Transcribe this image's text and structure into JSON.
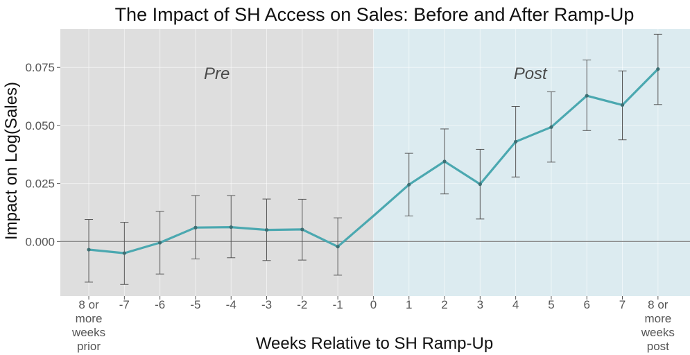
{
  "chart_data": {
    "type": "line",
    "title": "The Impact of SH Access on Sales: Before and After Ramp-Up",
    "xlabel": "Weeks Relative to SH Ramp-Up",
    "ylabel": "Impact on Log(Sales)",
    "x_tick_labels": [
      [
        "8 or",
        "more",
        "weeks",
        "prior"
      ],
      [
        "-7"
      ],
      [
        "-6"
      ],
      [
        "-5"
      ],
      [
        "-4"
      ],
      [
        "-3"
      ],
      [
        "-2"
      ],
      [
        "-1"
      ],
      [
        "0"
      ],
      [
        "1"
      ],
      [
        "2"
      ],
      [
        "3"
      ],
      [
        "4"
      ],
      [
        "5"
      ],
      [
        "6"
      ],
      [
        "7"
      ],
      [
        "8 or",
        "more",
        "weeks",
        "post"
      ]
    ],
    "x_positions": [
      -8,
      -7,
      -6,
      -5,
      -4,
      -3,
      -2,
      -1,
      0,
      1,
      2,
      3,
      4,
      5,
      6,
      7,
      8
    ],
    "y_ticks": [
      0.0,
      0.025,
      0.05,
      0.075
    ],
    "y_tick_labels": [
      "0.000",
      "0.025",
      "0.050",
      "0.075"
    ],
    "ylim": [
      -0.0235,
      0.0915
    ],
    "xlim": [
      -8.8,
      8.9
    ],
    "regions": [
      {
        "label": "Pre",
        "from": -8.8,
        "to": 0,
        "color": "#dedede"
      },
      {
        "label": "Post",
        "from": 0,
        "to": 8.9,
        "color": "#dcebf0"
      }
    ],
    "series": [
      {
        "name": "Impact",
        "color": "#4ba8b0",
        "x": [
          -8,
          -7,
          -6,
          -5,
          -4,
          -3,
          -2,
          -1,
          0,
          1,
          2,
          3,
          4,
          5,
          6,
          7,
          8
        ],
        "y": [
          -0.0035,
          -0.005,
          -0.0005,
          0.006,
          0.0062,
          0.005,
          0.0052,
          -0.0022,
          0.011,
          0.0245,
          0.0345,
          0.0247,
          0.043,
          0.0493,
          0.0628,
          0.0588,
          0.0743
        ],
        "err_low": [
          -0.0175,
          -0.0185,
          -0.014,
          -0.0075,
          -0.007,
          -0.0082,
          -0.008,
          -0.0145,
          null,
          0.011,
          0.0205,
          0.0097,
          0.0278,
          0.0342,
          0.0478,
          0.0438,
          0.059
        ],
        "err_high": [
          0.0095,
          0.0083,
          0.013,
          0.0198,
          0.0198,
          0.0183,
          0.0182,
          0.0102,
          null,
          0.038,
          0.0485,
          0.0397,
          0.0582,
          0.0645,
          0.0782,
          0.0735,
          0.0893
        ],
        "marker_x": [
          -8,
          -7,
          -6,
          -5,
          -4,
          -3,
          -2,
          -1,
          1,
          2,
          3,
          4,
          5,
          6,
          7,
          8
        ]
      }
    ],
    "reference_line_y": 0,
    "grid": true
  }
}
